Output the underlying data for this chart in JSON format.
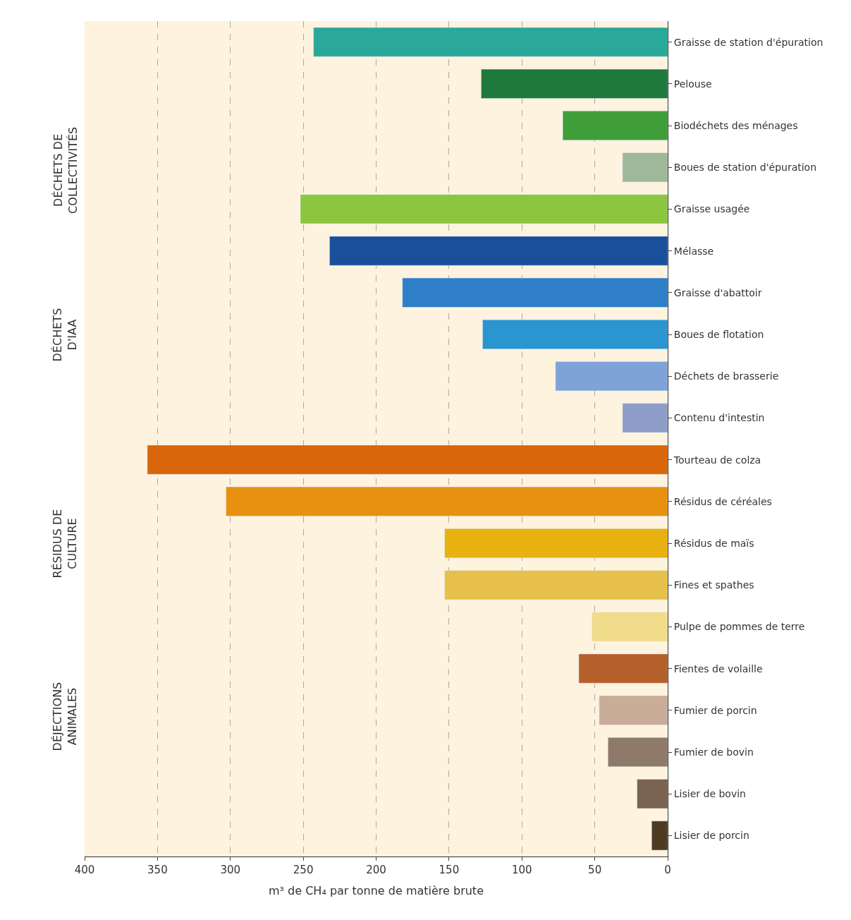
{
  "chart_data": {
    "type": "bar",
    "orientation": "horizontal",
    "xlabel": "m³ de CH₄ par tonne de matière brute",
    "categories": [
      "Graisse de station d'épuration",
      "Pelouse",
      "Biodéchets des ménages",
      "Boues de station d'épuration",
      "Graisse usagée",
      "Mélasse",
      "Graisse d'abattoir",
      "Boues de flotation",
      "Déchets de brasserie",
      "Contenu d'intestin",
      "Tourteau de colza",
      "Résidus de céréales",
      "Résidus de maïs",
      "Fines et spathes",
      "Pulpe de pommes de terre",
      "Fientes de volaille",
      "Fumier de porcin",
      "Fumier de bovin",
      "Lisier de bovin",
      "Lisier de porcin"
    ],
    "values": [
      243,
      128,
      72,
      31,
      252,
      232,
      182,
      127,
      77,
      31,
      357,
      303,
      153,
      153,
      52,
      61,
      47,
      41,
      21,
      11
    ],
    "colors": [
      "#2aa89a",
      "#1e7a3c",
      "#3f9e3a",
      "#9fb89a",
      "#8cc63f",
      "#1a4f9c",
      "#2f7fc8",
      "#2a95d0",
      "#7fa3d6",
      "#8e9cc8",
      "#d9660a",
      "#e8900f",
      "#e8b010",
      "#e6c04a",
      "#f0dc8a",
      "#b5602a",
      "#c9ad98",
      "#8f7a6a",
      "#7a6350",
      "#4f3b22"
    ],
    "xlim": [
      400,
      0
    ],
    "xticks": [
      0,
      50,
      100,
      150,
      200,
      250,
      300,
      350,
      400
    ],
    "grid": "x",
    "annotations": [
      "DÉCHETS DE COLLECTIVITÉS",
      "DÉCHETS D'IAA",
      "RÉSIDUS DE CULTURE",
      "DÉJECTIONS ANIMALES"
    ]
  }
}
